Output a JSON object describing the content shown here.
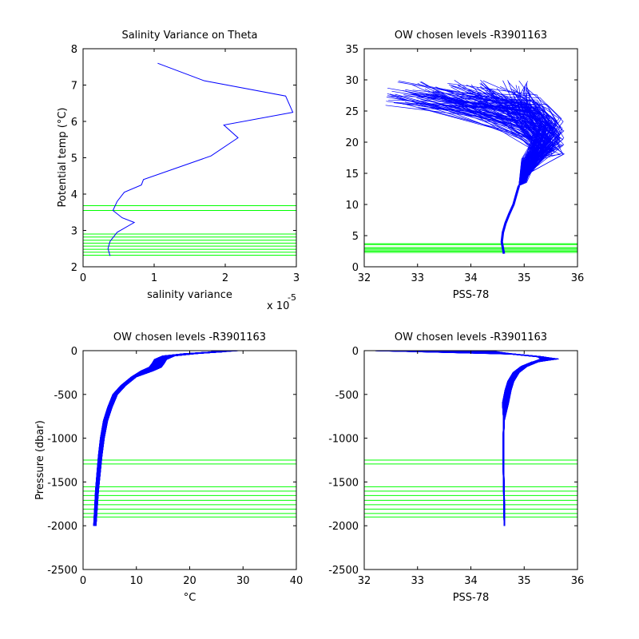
{
  "figure": {
    "background": "#ffffff"
  },
  "chart_data": [
    {
      "id": "salvar",
      "type": "line",
      "title": "Salinity Variance on Theta",
      "xlabel": "salinity variance",
      "xlabel_multiplier": "x 10",
      "xlabel_exponent": "-5",
      "ylabel": "Potential temp (°C)",
      "xlim": [
        0,
        3
      ],
      "ylim": [
        2,
        8
      ],
      "xticks": [
        "0",
        "1",
        "2",
        "3"
      ],
      "yticks": [
        "2",
        "3",
        "4",
        "5",
        "6",
        "7",
        "8"
      ],
      "series": [
        {
          "color": "#0000ff",
          "points": [
            [
              1.05,
              7.6
            ],
            [
              1.7,
              7.12
            ],
            [
              2.85,
              6.7
            ],
            [
              2.95,
              6.25
            ],
            [
              1.98,
              5.9
            ],
            [
              2.18,
              5.55
            ],
            [
              1.8,
              5.05
            ],
            [
              0.85,
              4.4
            ],
            [
              0.82,
              4.25
            ],
            [
              0.58,
              4.05
            ],
            [
              0.48,
              3.8
            ],
            [
              0.42,
              3.55
            ],
            [
              0.55,
              3.35
            ],
            [
              0.72,
              3.22
            ],
            [
              0.48,
              2.95
            ],
            [
              0.38,
              2.7
            ],
            [
              0.35,
              2.5
            ],
            [
              0.38,
              2.3
            ]
          ]
        }
      ],
      "hlines": {
        "color": "#00ff00",
        "values": [
          3.55,
          3.68,
          2.32,
          2.4,
          2.48,
          2.57,
          2.65,
          2.73,
          2.82,
          2.9
        ]
      }
    },
    {
      "id": "theta_sal",
      "type": "line",
      "title": "OW chosen levels -R3901163",
      "xlabel": "PSS-78",
      "xlim": [
        32,
        36
      ],
      "ylim": [
        0,
        35
      ],
      "xticks": [
        "32",
        "33",
        "34",
        "35",
        "36"
      ],
      "yticks": [
        "0",
        "5",
        "10",
        "15",
        "20",
        "25",
        "30",
        "35"
      ],
      "series": [
        {
          "color": "#0000ff",
          "profile_count": 150,
          "surface_theta_range": [
            25.5,
            30
          ],
          "surface_salinity_range": [
            32.4,
            35.1
          ],
          "deep_points": [
            [
              34.62,
              2.1
            ],
            [
              34.6,
              3.0
            ],
            [
              34.58,
              4.0
            ],
            [
              34.6,
              5.5
            ],
            [
              34.65,
              7.0
            ],
            [
              34.72,
              8.5
            ],
            [
              34.8,
              10.0
            ],
            [
              34.85,
              11.5
            ],
            [
              34.9,
              13.0
            ]
          ],
          "fan_end_theta_range": [
            13.5,
            17.5
          ],
          "fan_peak_salinity_range": [
            35.2,
            35.75
          ]
        }
      ],
      "hlines": {
        "color": "#00ff00",
        "values": [
          2.3,
          2.5,
          2.7,
          2.9,
          3.1,
          3.55,
          3.7
        ]
      }
    },
    {
      "id": "pres_temp",
      "type": "line",
      "title": "OW chosen levels -R3901163",
      "xlabel": "°C",
      "ylabel": "Pressure (dbar)",
      "xlim": [
        0,
        40
      ],
      "ylim": [
        -2500,
        0
      ],
      "xticks": [
        "0",
        "10",
        "20",
        "30",
        "40"
      ],
      "yticks": [
        "0",
        "-500",
        "-1000",
        "-1500",
        "-2000",
        "-2500"
      ],
      "series": [
        {
          "color": "#0000ff",
          "profile_count": 150,
          "center_points": [
            [
              29,
              0
            ],
            [
              25,
              -15
            ],
            [
              20,
              -35
            ],
            [
              16,
              -60
            ],
            [
              14.5,
              -100
            ],
            [
              14,
              -150
            ],
            [
              13.5,
              -190
            ],
            [
              12,
              -230
            ],
            [
              9.5,
              -300
            ],
            [
              7.5,
              -400
            ],
            [
              6,
              -500
            ],
            [
              5,
              -650
            ],
            [
              4.2,
              -800
            ],
            [
              3.6,
              -1000
            ],
            [
              3.2,
              -1200
            ],
            [
              2.9,
              -1400
            ],
            [
              2.6,
              -1600
            ],
            [
              2.4,
              -1800
            ],
            [
              2.2,
              -2000
            ]
          ],
          "surface_temp_range": [
            24,
            29.5
          ],
          "deep_spread": 0.5
        }
      ],
      "hlines": {
        "color": "#00ff00",
        "values": [
          -1250,
          -1295,
          -1555,
          -1605,
          -1655,
          -1710,
          -1760,
          -1810,
          -1860,
          -1900
        ]
      }
    },
    {
      "id": "pres_sal",
      "type": "line",
      "title": "OW chosen levels -R3901163",
      "xlabel": "PSS-78",
      "xlim": [
        32,
        36
      ],
      "ylim": [
        -2500,
        0
      ],
      "xticks": [
        "32",
        "33",
        "34",
        "35",
        "36"
      ],
      "yticks": [
        "0",
        "-500",
        "-1000",
        "-1500",
        "-2000",
        "-2500"
      ],
      "series": [
        {
          "color": "#0000ff",
          "profile_count": 150,
          "center_points": [
            [
              33,
              -2
            ],
            [
              34.8,
              -40
            ],
            [
              35.3,
              -70
            ],
            [
              35.5,
              -95
            ],
            [
              35.2,
              -130
            ],
            [
              35.0,
              -180
            ],
            [
              34.85,
              -250
            ],
            [
              34.75,
              -350
            ],
            [
              34.7,
              -450
            ],
            [
              34.65,
              -600
            ],
            [
              34.62,
              -800
            ],
            [
              34.61,
              -1000
            ],
            [
              34.61,
              -1300
            ],
            [
              34.62,
              -1600
            ],
            [
              34.63,
              -2000
            ]
          ],
          "surface_salinity_range": [
            32.2,
            34.4
          ],
          "peak_salinity_range": [
            35.3,
            35.65
          ]
        }
      ],
      "hlines": {
        "color": "#00ff00",
        "values": [
          -1250,
          -1295,
          -1555,
          -1605,
          -1655,
          -1710,
          -1760,
          -1810,
          -1860,
          -1900
        ]
      }
    }
  ]
}
